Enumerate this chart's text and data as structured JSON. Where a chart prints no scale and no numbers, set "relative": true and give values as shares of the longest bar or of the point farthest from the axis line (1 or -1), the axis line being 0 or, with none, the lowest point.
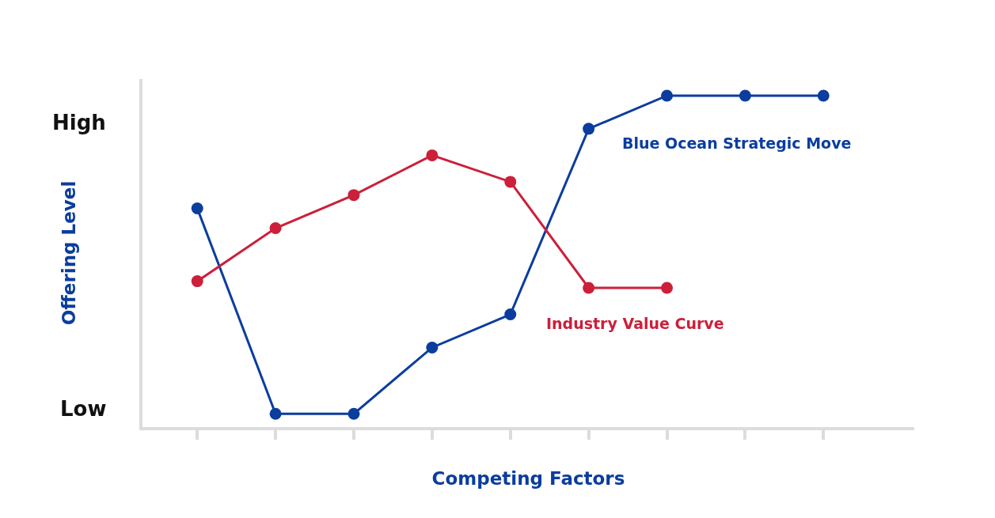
{
  "chart_data": {
    "type": "line",
    "relative": true,
    "xlabel": "Competing Factors",
    "ylabel": "Offering Level",
    "annotations": [
      "High",
      "Low"
    ],
    "categories": [
      null,
      null,
      null,
      null,
      null,
      null,
      null,
      null,
      null
    ],
    "series": [
      {
        "name": "Blue Ocean Strategic Move",
        "color": "#0a3d9e",
        "values": [
          0.66,
          0.04,
          0.04,
          0.24,
          0.34,
          0.9,
          1,
          1,
          1
        ]
      },
      {
        "name": "Industry Value Curve",
        "color": "#cc1f3a",
        "values": [
          0.44,
          0.6,
          0.7,
          0.82,
          0.74,
          0.42,
          0.42,
          null,
          null
        ]
      }
    ],
    "grid": false,
    "legend": false,
    "marker": "circle",
    "line_style": "solid"
  }
}
